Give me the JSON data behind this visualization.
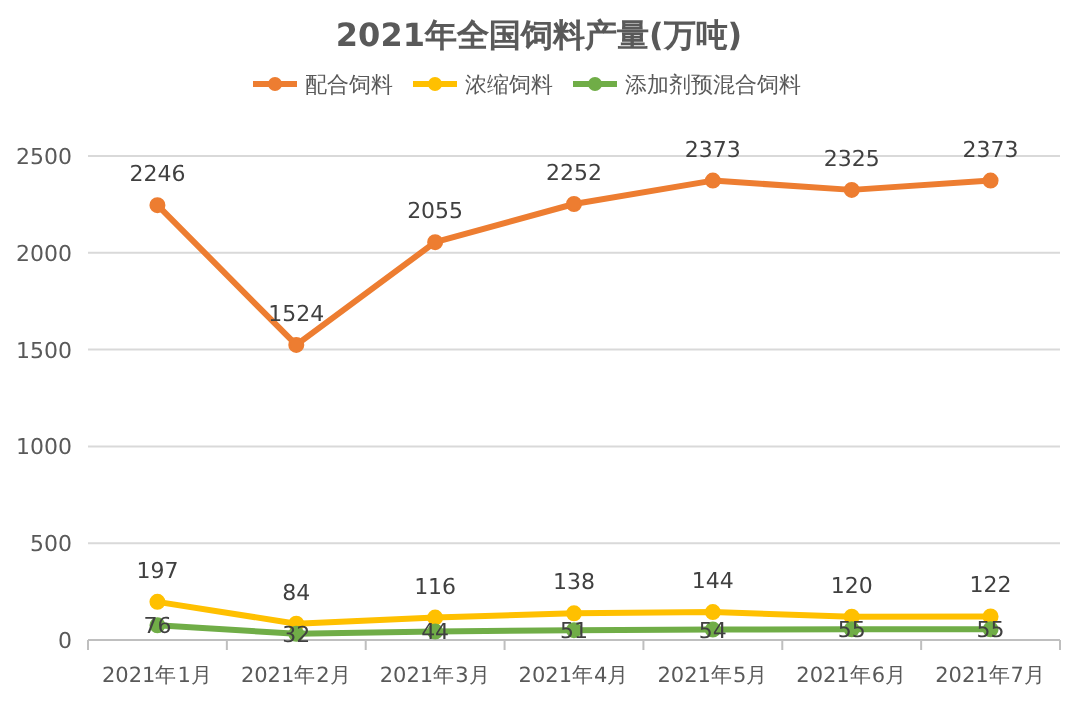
{
  "chart_data": {
    "type": "line",
    "title": "2021年全国饲料产量(万吨)",
    "categories": [
      "2021年1月",
      "2021年2月",
      "2021年3月",
      "2021年4月",
      "2021年5月",
      "2021年6月",
      "2021年7月"
    ],
    "series": [
      {
        "name": "配合饲料",
        "color": "#ed7d31",
        "values": [
          2246,
          1524,
          2055,
          2252,
          2373,
          2325,
          2373
        ]
      },
      {
        "name": "浓缩饲料",
        "color": "#ffc000",
        "values": [
          197,
          84,
          116,
          138,
          144,
          120,
          122
        ]
      },
      {
        "name": "添加剂预混合饲料",
        "color": "#70ad47",
        "values": [
          76,
          32,
          44,
          51,
          54,
          55,
          55
        ]
      }
    ],
    "ylim": [
      0,
      2500
    ],
    "yticks": [
      0,
      500,
      1000,
      1500,
      2000,
      2500
    ],
    "grid": "y",
    "legend": "top",
    "marker": "circle",
    "line_style": "solid",
    "data_labels": true
  }
}
